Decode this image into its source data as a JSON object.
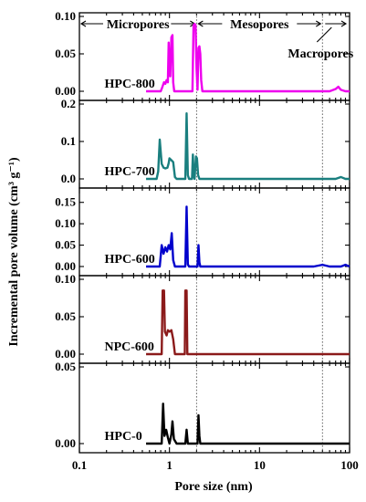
{
  "chart_data": {
    "type": "line",
    "x_scale": "log",
    "xlim": [
      0.1,
      100
    ],
    "x_ticks": [
      "0.1",
      "1",
      "10",
      "100"
    ],
    "xlabel": "Pore size (nm)",
    "ylabel": "Incremental pore volume (cm³ g⁻¹)",
    "grid": false,
    "regions": [
      {
        "label": "Micropores",
        "boundary_nm": 2
      },
      {
        "label": "Mesopores",
        "boundary_nm": 50
      },
      {
        "label": "Macropores"
      }
    ],
    "panels": [
      {
        "name": "HPC-800",
        "color": "#ee00ee",
        "ylim": [
          0,
          0.1
        ],
        "y_ticks": [
          "0.00",
          "0.05",
          "0.10"
        ],
        "points": [
          [
            0.55,
            0
          ],
          [
            0.8,
            0
          ],
          [
            0.83,
            0.005
          ],
          [
            0.87,
            0.012
          ],
          [
            0.9,
            0.01
          ],
          [
            0.93,
            0.015
          ],
          [
            0.96,
            0.012
          ],
          [
            0.98,
            0.065
          ],
          [
            1.0,
            0.025
          ],
          [
            1.02,
            0.02
          ],
          [
            1.05,
            0.072
          ],
          [
            1.08,
            0.075
          ],
          [
            1.1,
            0.012
          ],
          [
            1.13,
            0
          ],
          [
            1.8,
            0
          ],
          [
            1.85,
            0.088
          ],
          [
            1.9,
            0.09
          ],
          [
            1.95,
            0.088
          ],
          [
            2.0,
            0.03
          ],
          [
            2.05,
            0.002
          ],
          [
            2.1,
            0.058
          ],
          [
            2.15,
            0.06
          ],
          [
            2.2,
            0.05
          ],
          [
            2.25,
            0.015
          ],
          [
            2.32,
            0
          ],
          [
            3,
            0
          ],
          [
            10,
            0
          ],
          [
            60,
            0
          ],
          [
            70,
            0.003
          ],
          [
            75,
            0.006
          ],
          [
            80,
            0.002
          ],
          [
            90,
            0
          ],
          [
            100,
            0
          ]
        ]
      },
      {
        "name": "HPC-700",
        "color": "#1a7f7f",
        "ylim": [
          0,
          0.2
        ],
        "y_ticks": [
          "0.0",
          "0.1",
          "0.2"
        ],
        "points": [
          [
            0.55,
            0
          ],
          [
            0.72,
            0
          ],
          [
            0.75,
            0.02
          ],
          [
            0.78,
            0.105
          ],
          [
            0.82,
            0.04
          ],
          [
            0.86,
            0.03
          ],
          [
            0.9,
            0.028
          ],
          [
            0.95,
            0.03
          ],
          [
            0.98,
            0.042
          ],
          [
            1.0,
            0.055
          ],
          [
            1.05,
            0.05
          ],
          [
            1.1,
            0.045
          ],
          [
            1.15,
            0.005
          ],
          [
            1.2,
            0
          ],
          [
            1.5,
            0
          ],
          [
            1.55,
            0.175
          ],
          [
            1.6,
            0.01
          ],
          [
            1.65,
            0
          ],
          [
            1.78,
            0
          ],
          [
            1.82,
            0.065
          ],
          [
            1.86,
            0.01
          ],
          [
            1.9,
            0
          ],
          [
            1.97,
            0.06
          ],
          [
            2.02,
            0.055
          ],
          [
            2.08,
            0.01
          ],
          [
            2.15,
            0
          ],
          [
            10,
            0
          ],
          [
            70,
            0
          ],
          [
            80,
            0.005
          ],
          [
            90,
            0
          ],
          [
            100,
            0
          ]
        ]
      },
      {
        "name": "HPC-600",
        "color": "#0000cc",
        "ylim": [
          0,
          0.175
        ],
        "y_ticks": [
          "0.00",
          "0.05",
          "0.10",
          "0.15"
        ],
        "points": [
          [
            0.55,
            0
          ],
          [
            0.78,
            0
          ],
          [
            0.82,
            0.05
          ],
          [
            0.86,
            0.03
          ],
          [
            0.9,
            0.045
          ],
          [
            0.94,
            0.035
          ],
          [
            0.98,
            0.05
          ],
          [
            1.02,
            0.04
          ],
          [
            1.06,
            0.078
          ],
          [
            1.1,
            0.015
          ],
          [
            1.15,
            0
          ],
          [
            1.5,
            0
          ],
          [
            1.55,
            0.14
          ],
          [
            1.6,
            0.005
          ],
          [
            1.65,
            0
          ],
          [
            2.05,
            0
          ],
          [
            2.1,
            0.05
          ],
          [
            2.15,
            0.01
          ],
          [
            2.2,
            0
          ],
          [
            40,
            0
          ],
          [
            50,
            0.004
          ],
          [
            60,
            0
          ],
          [
            80,
            0
          ],
          [
            90,
            0.004
          ],
          [
            100,
            0
          ]
        ]
      },
      {
        "name": "NPC-600",
        "color": "#8b1a1a",
        "ylim": [
          0,
          0.1
        ],
        "y_ticks": [
          "0.00",
          "0.05",
          "0.10"
        ],
        "points": [
          [
            0.55,
            0
          ],
          [
            0.82,
            0
          ],
          [
            0.84,
            0.085
          ],
          [
            0.87,
            0.085
          ],
          [
            0.89,
            0.03
          ],
          [
            0.93,
            0.025
          ],
          [
            0.96,
            0.032
          ],
          [
            1.0,
            0.03
          ],
          [
            1.05,
            0.032
          ],
          [
            1.1,
            0.02
          ],
          [
            1.15,
            0
          ],
          [
            1.48,
            0
          ],
          [
            1.5,
            0.085
          ],
          [
            1.55,
            0.085
          ],
          [
            1.58,
            0
          ],
          [
            100,
            0
          ]
        ]
      },
      {
        "name": "HPC-0",
        "color": "#000000",
        "ylim": [
          0,
          0.05
        ],
        "y_ticks": [
          "0.00",
          "0.05"
        ],
        "points": [
          [
            0.55,
            0
          ],
          [
            0.82,
            0
          ],
          [
            0.85,
            0.026
          ],
          [
            0.88,
            0.005
          ],
          [
            0.92,
            0.009
          ],
          [
            0.96,
            0.004
          ],
          [
            1.0,
            0
          ],
          [
            1.05,
            0.006
          ],
          [
            1.08,
            0.0145
          ],
          [
            1.12,
            0.003
          ],
          [
            1.2,
            0
          ],
          [
            1.5,
            0
          ],
          [
            1.55,
            0.009
          ],
          [
            1.6,
            0
          ],
          [
            2.05,
            0
          ],
          [
            2.1,
            0.0185
          ],
          [
            2.15,
            0.005
          ],
          [
            2.2,
            0
          ],
          [
            100,
            0
          ]
        ]
      }
    ]
  }
}
